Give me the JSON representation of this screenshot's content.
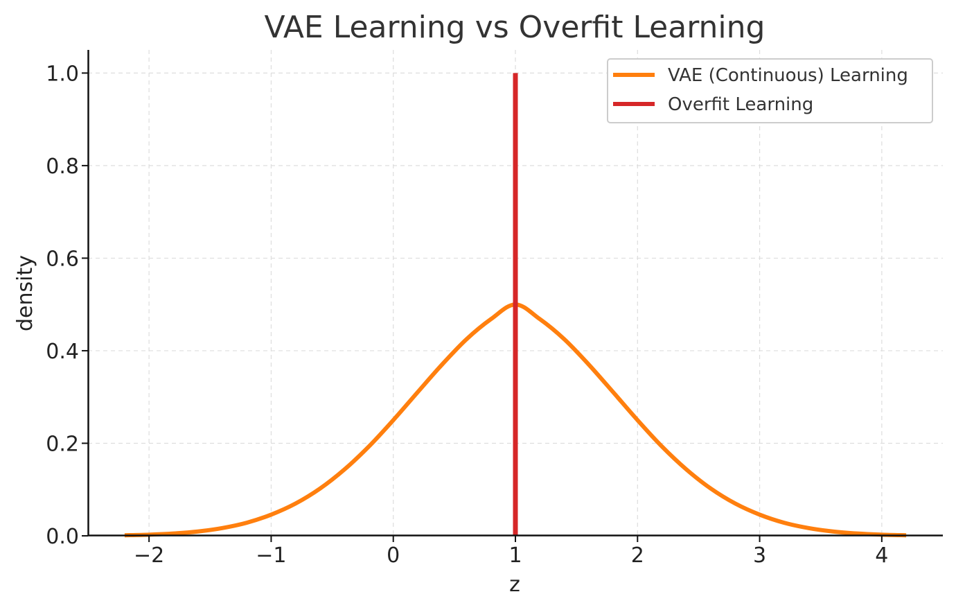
{
  "chart_data": {
    "type": "line",
    "title": "VAE Learning vs Overfit Learning",
    "xlabel": "z",
    "ylabel": "density",
    "xlim": [
      -2.5,
      4.5
    ],
    "ylim": [
      0.0,
      1.05
    ],
    "xticks": [
      -2,
      -1,
      0,
      1,
      2,
      3,
      4
    ],
    "xtick_labels": [
      "−2",
      "−1",
      "0",
      "1",
      "2",
      "3",
      "4"
    ],
    "yticks": [
      0.0,
      0.2,
      0.4,
      0.6,
      0.8,
      1.0
    ],
    "ytick_labels": [
      "0.0",
      "0.2",
      "0.4",
      "0.6",
      "0.8",
      "1.0"
    ],
    "grid": true,
    "legend_position": "top-right",
    "series": [
      {
        "name": "VAE (Continuous) Learning",
        "type": "line",
        "color": "#ff7f0e",
        "x": [
          -2.2,
          -2.0,
          -1.8,
          -1.6,
          -1.4,
          -1.2,
          -1.0,
          -0.8,
          -0.6,
          -0.4,
          -0.2,
          0.0,
          0.2,
          0.4,
          0.6,
          0.8,
          1.0,
          1.2,
          1.4,
          1.6,
          1.8,
          2.0,
          2.2,
          2.4,
          2.6,
          2.8,
          3.0,
          3.2,
          3.4,
          3.6,
          3.8,
          4.0,
          4.2
        ],
        "y": [
          0.0012,
          0.0025,
          0.005,
          0.0094,
          0.0168,
          0.0283,
          0.0458,
          0.0698,
          0.1021,
          0.1434,
          0.193,
          0.25,
          0.3105,
          0.3703,
          0.4249,
          0.4683,
          0.5,
          0.4683,
          0.4249,
          0.3703,
          0.3105,
          0.25,
          0.193,
          0.1434,
          0.1021,
          0.0698,
          0.0458,
          0.0283,
          0.0168,
          0.0094,
          0.005,
          0.0025,
          0.0012
        ]
      },
      {
        "name": "Overfit Learning",
        "type": "vline",
        "color": "#d62728",
        "x": [
          1.0,
          1.0
        ],
        "y": [
          0.0,
          1.0
        ]
      }
    ]
  }
}
